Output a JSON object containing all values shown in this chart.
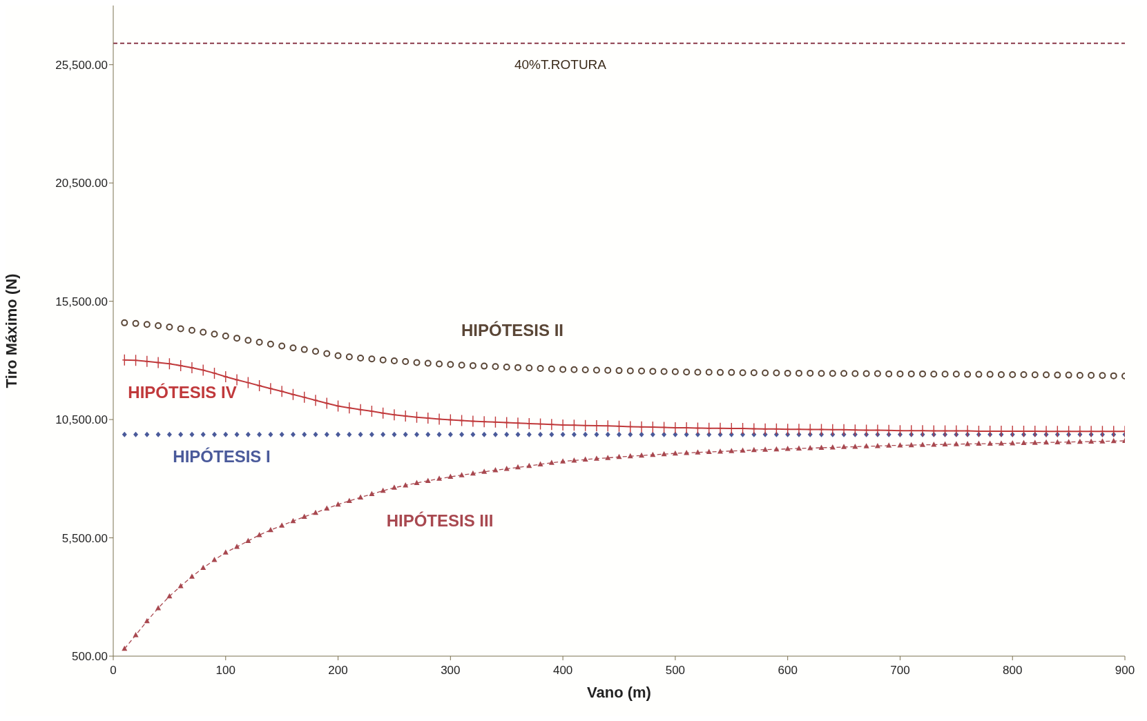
{
  "chart_data": {
    "type": "line",
    "xlabel": "Vano (m)",
    "ylabel": "Tiro Máximo (N)",
    "x": [
      10,
      20,
      30,
      40,
      50,
      60,
      70,
      80,
      90,
      100,
      110,
      120,
      130,
      140,
      150,
      160,
      170,
      180,
      190,
      200,
      210,
      220,
      230,
      240,
      250,
      260,
      270,
      280,
      290,
      300,
      310,
      320,
      330,
      340,
      350,
      360,
      370,
      380,
      390,
      400,
      410,
      420,
      430,
      440,
      450,
      460,
      470,
      480,
      490,
      500,
      510,
      520,
      530,
      540,
      550,
      560,
      570,
      580,
      590,
      600,
      610,
      620,
      630,
      640,
      650,
      660,
      670,
      680,
      690,
      700,
      710,
      720,
      730,
      740,
      750,
      760,
      770,
      780,
      790,
      800,
      810,
      820,
      830,
      840,
      850,
      860,
      870,
      880,
      890,
      900
    ],
    "xlim": [
      0,
      900
    ],
    "xticks": [
      0,
      100,
      200,
      300,
      400,
      500,
      600,
      700,
      800,
      900
    ],
    "ylim": [
      500,
      28000
    ],
    "yticks": [
      {
        "value": 500,
        "label": "500.00"
      },
      {
        "value": 5500,
        "label": "5,500.00"
      },
      {
        "value": 10500,
        "label": "10,500.00"
      },
      {
        "value": 15500,
        "label": "15,500.00"
      },
      {
        "value": 20500,
        "label": "20,500.00"
      },
      {
        "value": 25500,
        "label": "25,500.00"
      }
    ],
    "grid": false,
    "ref_lines": [
      {
        "axis": "y",
        "value": 26400,
        "label": "40%T.ROTURA",
        "color": "#8b3a4a",
        "line_style": "dashed"
      }
    ],
    "series": [
      {
        "name": "HIPÓTESIS I",
        "type": "scatter",
        "marker": "diamond",
        "color": "#4a5a9a",
        "values": [
          9870,
          9870,
          9870,
          9870,
          9870,
          9870,
          9870,
          9870,
          9870,
          9870,
          9870,
          9870,
          9870,
          9870,
          9870,
          9870,
          9870,
          9870,
          9870,
          9870,
          9870,
          9870,
          9870,
          9870,
          9870,
          9870,
          9870,
          9870,
          9870,
          9870,
          9870,
          9870,
          9870,
          9870,
          9870,
          9870,
          9870,
          9870,
          9870,
          9870,
          9870,
          9870,
          9870,
          9870,
          9870,
          9870,
          9870,
          9870,
          9870,
          9870,
          9870,
          9870,
          9870,
          9870,
          9870,
          9870,
          9870,
          9870,
          9870,
          9870,
          9870,
          9870,
          9870,
          9870,
          9870,
          9870,
          9870,
          9870,
          9870,
          9870,
          9870,
          9870,
          9870,
          9870,
          9870,
          9870,
          9870,
          9870,
          9870,
          9870,
          9870,
          9870,
          9870,
          9870,
          9870,
          9870,
          9870,
          9870,
          9870,
          9870
        ]
      },
      {
        "name": "HIPÓTESIS II",
        "type": "scatter",
        "marker": "circle",
        "color": "#5a4636",
        "values": [
          14590,
          14560,
          14520,
          14470,
          14410,
          14340,
          14270,
          14190,
          14110,
          14030,
          13940,
          13850,
          13770,
          13690,
          13610,
          13530,
          13460,
          13380,
          13290,
          13200,
          13150,
          13100,
          13060,
          13020,
          12980,
          12950,
          12910,
          12880,
          12850,
          12830,
          12800,
          12780,
          12760,
          12740,
          12720,
          12700,
          12680,
          12660,
          12640,
          12620,
          12610,
          12600,
          12590,
          12580,
          12570,
          12560,
          12550,
          12540,
          12530,
          12520,
          12510,
          12500,
          12500,
          12490,
          12490,
          12480,
          12480,
          12470,
          12470,
          12460,
          12460,
          12460,
          12450,
          12450,
          12450,
          12440,
          12440,
          12440,
          12430,
          12430,
          12430,
          12430,
          12420,
          12420,
          12420,
          12410,
          12410,
          12410,
          12400,
          12400,
          12400,
          12390,
          12390,
          12380,
          12380,
          12370,
          12370,
          12360,
          12350,
          12340
        ]
      },
      {
        "name": "HIPÓTESIS III",
        "marker": "triangle",
        "line_style": "dashed",
        "color": "#a8484f",
        "values": [
          810,
          1390,
          1980,
          2530,
          3030,
          3460,
          3860,
          4230,
          4570,
          4880,
          5120,
          5370,
          5620,
          5830,
          6020,
          6210,
          6390,
          6560,
          6740,
          6910,
          7060,
          7210,
          7350,
          7490,
          7620,
          7720,
          7820,
          7910,
          8000,
          8080,
          8150,
          8220,
          8290,
          8360,
          8420,
          8480,
          8540,
          8610,
          8670,
          8730,
          8770,
          8810,
          8850,
          8880,
          8920,
          8950,
          8980,
          9010,
          9040,
          9070,
          9090,
          9110,
          9130,
          9150,
          9170,
          9190,
          9210,
          9230,
          9240,
          9260,
          9280,
          9290,
          9310,
          9320,
          9340,
          9350,
          9370,
          9380,
          9400,
          9410,
          9420,
          9430,
          9440,
          9450,
          9460,
          9470,
          9480,
          9480,
          9490,
          9500,
          9510,
          9520,
          9530,
          9540,
          9550,
          9560,
          9570,
          9580,
          9590,
          9600
        ]
      },
      {
        "name": "HIPÓTESIS IV",
        "marker": "cross",
        "line_style": "solid",
        "color": "#c0393b",
        "values": [
          13020,
          13000,
          12960,
          12910,
          12860,
          12780,
          12690,
          12590,
          12460,
          12310,
          12180,
          12060,
          11930,
          11810,
          11690,
          11560,
          11440,
          11310,
          11190,
          11070,
          10990,
          10920,
          10850,
          10770,
          10700,
          10650,
          10600,
          10560,
          10520,
          10490,
          10460,
          10430,
          10410,
          10390,
          10370,
          10350,
          10330,
          10310,
          10290,
          10270,
          10260,
          10250,
          10240,
          10230,
          10220,
          10200,
          10190,
          10180,
          10170,
          10150,
          10150,
          10140,
          10130,
          10130,
          10120,
          10120,
          10110,
          10100,
          10100,
          10090,
          10090,
          10080,
          10080,
          10070,
          10070,
          10060,
          10050,
          10050,
          10040,
          10030,
          10030,
          10030,
          10020,
          10020,
          10020,
          10020,
          10010,
          10010,
          10010,
          10010,
          10010,
          10010,
          10000,
          10000,
          10000,
          10000,
          10000,
          10000,
          10000,
          10000
        ]
      }
    ]
  }
}
